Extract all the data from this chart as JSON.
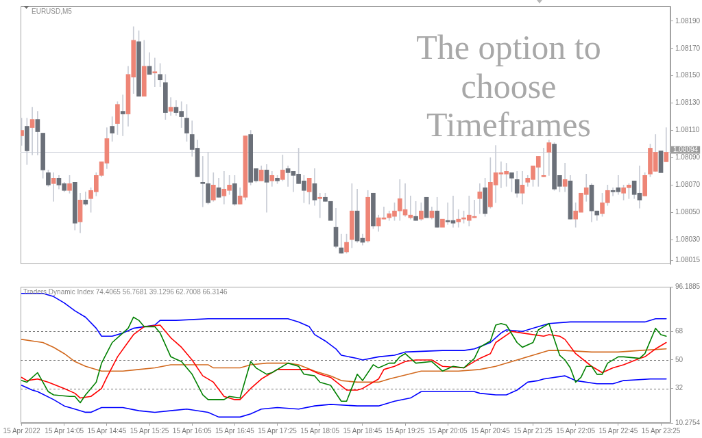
{
  "chart_data": [
    {
      "type": "candlestick",
      "title": "EURUSD,M5",
      "x": [
        "2022-04-15T13:25",
        "2022-04-15T13:30",
        "2022-04-15T13:35",
        "2022-04-15T13:40",
        "2022-04-15T13:45",
        "2022-04-15T13:50",
        "2022-04-15T13:55",
        "2022-04-15T14:00",
        "2022-04-15T14:05",
        "2022-04-15T14:10",
        "2022-04-15T14:15",
        "2022-04-15T14:20",
        "2022-04-15T14:25",
        "2022-04-15T14:30",
        "2022-04-15T14:35",
        "2022-04-15T14:40",
        "2022-04-15T14:45",
        "2022-04-15T14:50",
        "2022-04-15T14:55",
        "2022-04-15T15:00",
        "2022-04-15T15:05",
        "2022-04-15T15:10",
        "2022-04-15T15:15",
        "2022-04-15T15:20",
        "2022-04-15T15:25",
        "2022-04-15T15:30",
        "2022-04-15T15:35",
        "2022-04-15T15:40",
        "2022-04-15T15:45",
        "2022-04-15T15:50",
        "2022-04-15T15:55",
        "2022-04-15T16:00",
        "2022-04-15T16:05",
        "2022-04-15T16:10",
        "2022-04-15T16:15",
        "2022-04-15T16:20",
        "2022-04-15T16:25",
        "2022-04-15T16:30",
        "2022-04-15T16:35",
        "2022-04-15T16:40",
        "2022-04-15T16:45",
        "2022-04-15T16:50",
        "2022-04-15T16:55",
        "2022-04-15T17:00",
        "2022-04-15T17:05",
        "2022-04-15T17:10",
        "2022-04-15T17:15",
        "2022-04-15T17:20",
        "2022-04-15T17:25",
        "2022-04-15T17:30",
        "2022-04-15T17:35",
        "2022-04-15T17:40",
        "2022-04-15T17:45",
        "2022-04-15T17:50",
        "2022-04-15T17:55",
        "2022-04-15T18:00",
        "2022-04-15T18:05",
        "2022-04-15T18:10",
        "2022-04-15T18:15",
        "2022-04-15T18:20",
        "2022-04-15T18:25",
        "2022-04-15T18:30",
        "2022-04-15T18:35",
        "2022-04-15T18:40",
        "2022-04-15T18:45",
        "2022-04-15T18:50",
        "2022-04-15T18:55",
        "2022-04-15T19:00",
        "2022-04-15T19:05",
        "2022-04-15T19:10",
        "2022-04-15T19:15",
        "2022-04-15T19:20",
        "2022-04-15T19:25",
        "2022-04-15T19:30",
        "2022-04-15T19:35",
        "2022-04-15T19:40",
        "2022-04-15T19:45",
        "2022-04-15T19:50",
        "2022-04-15T19:55",
        "2022-04-15T20:00",
        "2022-04-15T20:05",
        "2022-04-15T20:10",
        "2022-04-15T20:15",
        "2022-04-15T20:20",
        "2022-04-15T20:25",
        "2022-04-15T20:30",
        "2022-04-15T20:35",
        "2022-04-15T20:40",
        "2022-04-15T20:45",
        "2022-04-15T20:50",
        "2022-04-15T20:55",
        "2022-04-15T21:00",
        "2022-04-15T21:05",
        "2022-04-15T21:10",
        "2022-04-15T21:15",
        "2022-04-15T21:20",
        "2022-04-15T21:25",
        "2022-04-15T21:30",
        "2022-04-15T21:35",
        "2022-04-15T21:40",
        "2022-04-15T21:45",
        "2022-04-15T21:50",
        "2022-04-15T21:55",
        "2022-04-15T22:00",
        "2022-04-15T22:05",
        "2022-04-15T22:10",
        "2022-04-15T22:15",
        "2022-04-15T22:20",
        "2022-04-15T22:25",
        "2022-04-15T22:30",
        "2022-04-15T22:35",
        "2022-04-15T22:40",
        "2022-04-15T22:45",
        "2022-04-15T22:50",
        "2022-04-15T22:55",
        "2022-04-15T23:00",
        "2022-04-15T23:05",
        "2022-04-15T23:10",
        "2022-04-15T23:15",
        "2022-04-15T23:20",
        "2022-04-15T23:25",
        "2022-04-15T23:30"
      ],
      "ohlc": [
        [
          1.08106,
          1.08119,
          1.08099,
          1.0811
        ],
        [
          1.08113,
          1.08119,
          1.08085,
          1.08095
        ],
        [
          1.08112,
          1.08127,
          1.08092,
          1.08118
        ],
        [
          1.08118,
          1.08124,
          1.08092,
          1.08109
        ],
        [
          1.08108,
          1.08108,
          1.08075,
          1.08081
        ],
        [
          1.08079,
          1.08081,
          1.08069,
          1.0807
        ],
        [
          1.08071,
          1.08079,
          1.08058,
          1.08075
        ],
        [
          1.08075,
          1.08077,
          1.08067,
          1.0807
        ],
        [
          1.08071,
          1.08072,
          1.08065,
          1.08066
        ],
        [
          1.08066,
          1.08077,
          1.08064,
          1.08071
        ],
        [
          1.08072,
          1.08072,
          1.08037,
          1.08042
        ],
        [
          1.08043,
          1.08064,
          1.08035,
          1.08059
        ],
        [
          1.08059,
          1.08065,
          1.08055,
          1.08056
        ],
        [
          1.0806,
          1.08068,
          1.0805,
          1.08066
        ],
        [
          1.08065,
          1.08079,
          1.08062,
          1.08077
        ],
        [
          1.08077,
          1.08087,
          1.08076,
          1.08087
        ],
        [
          1.08086,
          1.08112,
          1.08082,
          1.08104
        ],
        [
          1.08113,
          1.0812,
          1.08102,
          1.08108
        ],
        [
          1.08115,
          1.08131,
          1.08107,
          1.08129
        ],
        [
          1.08124,
          1.08136,
          1.08106,
          1.08122
        ],
        [
          1.08122,
          1.08157,
          1.08113,
          1.08151
        ],
        [
          1.08149,
          1.08186,
          1.08137,
          1.08176
        ],
        [
          1.08175,
          1.08183,
          1.08135,
          1.08135
        ],
        [
          1.08135,
          1.08176,
          1.08135,
          1.08157
        ],
        [
          1.08157,
          1.08167,
          1.08151,
          1.08151
        ],
        [
          1.08152,
          1.08163,
          1.08142,
          1.08153
        ],
        [
          1.08151,
          1.08159,
          1.08142,
          1.08147
        ],
        [
          1.08145,
          1.08151,
          1.08118,
          1.08123
        ],
        [
          1.08124,
          1.08134,
          1.08121,
          1.08127
        ],
        [
          1.08127,
          1.08132,
          1.08121,
          1.08123
        ],
        [
          1.08124,
          1.08131,
          1.08112,
          1.0812
        ],
        [
          1.08119,
          1.08129,
          1.08102,
          1.08108
        ],
        [
          1.08107,
          1.08117,
          1.08091,
          1.08096
        ],
        [
          1.08097,
          1.08103,
          1.08076,
          1.08076
        ],
        [
          1.08072,
          1.08091,
          1.08054,
          1.08071
        ],
        [
          1.08071,
          1.08094,
          1.08056,
          1.08057
        ],
        [
          1.08059,
          1.08079,
          1.08058,
          1.0807
        ],
        [
          1.08068,
          1.08075,
          1.08061,
          1.08061
        ],
        [
          1.08062,
          1.0808,
          1.08056,
          1.08067
        ],
        [
          1.08066,
          1.08077,
          1.08063,
          1.0807
        ],
        [
          1.08071,
          1.08077,
          1.08055,
          1.08056
        ],
        [
          1.08056,
          1.08068,
          1.08056,
          1.08062
        ],
        [
          1.08061,
          1.08106,
          1.08059,
          1.08106
        ],
        [
          1.08107,
          1.0811,
          1.0807,
          1.08072
        ],
        [
          1.08082,
          1.08082,
          1.08072,
          1.08073
        ],
        [
          1.08073,
          1.08084,
          1.08073,
          1.08081
        ],
        [
          1.08081,
          1.08085,
          1.0805,
          1.08072
        ],
        [
          1.08073,
          1.0808,
          1.08069,
          1.08077
        ],
        [
          1.08075,
          1.08077,
          1.08071,
          1.08073
        ],
        [
          1.08074,
          1.08092,
          1.08073,
          1.08081
        ],
        [
          1.08082,
          1.08084,
          1.08069,
          1.08079
        ],
        [
          1.0808,
          1.0808,
          1.08065,
          1.08077
        ],
        [
          1.08078,
          1.08097,
          1.08071,
          1.08071
        ],
        [
          1.08073,
          1.08077,
          1.08057,
          1.08066
        ],
        [
          1.08065,
          1.08075,
          1.08056,
          1.08075
        ],
        [
          1.08071,
          1.08082,
          1.08055,
          1.08059
        ],
        [
          1.0806,
          1.08064,
          1.08046,
          1.08061
        ],
        [
          1.08061,
          1.08064,
          1.08058,
          1.08058
        ],
        [
          1.08058,
          1.08058,
          1.08044,
          1.08044
        ],
        [
          1.08039,
          1.08053,
          1.08024,
          1.08025
        ],
        [
          1.08024,
          1.08034,
          1.0802,
          1.0802
        ],
        [
          1.08021,
          1.08034,
          1.0802,
          1.08028
        ],
        [
          1.0803,
          1.08071,
          1.08024,
          1.08051
        ],
        [
          1.08051,
          1.08067,
          1.08028,
          1.08029
        ],
        [
          1.08031,
          1.08034,
          1.08026,
          1.08028
        ],
        [
          1.08029,
          1.08066,
          1.08028,
          1.08061
        ],
        [
          1.08064,
          1.08064,
          1.08038,
          1.0804
        ],
        [
          1.0804,
          1.08048,
          1.08036,
          1.08046
        ],
        [
          1.08045,
          1.08054,
          1.08045,
          1.08046
        ],
        [
          1.08046,
          1.08051,
          1.08044,
          1.08049
        ],
        [
          1.08047,
          1.08057,
          1.08044,
          1.08051
        ],
        [
          1.08051,
          1.08074,
          1.08044,
          1.0806
        ],
        [
          1.08048,
          1.08071,
          1.08047,
          1.08052
        ],
        [
          1.08046,
          1.08062,
          1.08045,
          1.08048
        ],
        [
          1.08047,
          1.08058,
          1.08044,
          1.08044
        ],
        [
          1.08045,
          1.08057,
          1.08044,
          1.08051
        ],
        [
          1.08061,
          1.08061,
          1.08046,
          1.08046
        ],
        [
          1.08046,
          1.08054,
          1.08045,
          1.08051
        ],
        [
          1.08051,
          1.08061,
          1.08039,
          1.08039
        ],
        [
          1.08039,
          1.08045,
          1.08039,
          1.08045
        ],
        [
          1.08044,
          1.08057,
          1.08041,
          1.08043
        ],
        [
          1.08044,
          1.08062,
          1.08039,
          1.08042
        ],
        [
          1.08043,
          1.08052,
          1.08039,
          1.08045
        ],
        [
          1.08045,
          1.08051,
          1.08042,
          1.08046
        ],
        [
          1.08044,
          1.08062,
          1.0804,
          1.08048
        ],
        [
          1.08046,
          1.08059,
          1.08046,
          1.08047
        ],
        [
          1.0806,
          1.08071,
          1.08049,
          1.08065
        ],
        [
          1.08068,
          1.08075,
          1.08047,
          1.08049
        ],
        [
          1.08054,
          1.0809,
          1.08053,
          1.08072
        ],
        [
          1.0807,
          1.08099,
          1.08057,
          1.08079
        ],
        [
          1.08078,
          1.08087,
          1.08068,
          1.08079
        ],
        [
          1.08078,
          1.08086,
          1.08069,
          1.0808
        ],
        [
          1.08079,
          1.08079,
          1.08065,
          1.08075
        ],
        [
          1.08074,
          1.0808,
          1.08061,
          1.08064
        ],
        [
          1.08064,
          1.0808,
          1.08056,
          1.0807
        ],
        [
          1.08072,
          1.08077,
          1.08069,
          1.08075
        ],
        [
          1.08074,
          1.08084,
          1.08069,
          1.08084
        ],
        [
          1.08083,
          1.08091,
          1.08069,
          1.08091
        ],
        [
          1.08076,
          1.08097,
          1.08076,
          1.08077
        ],
        [
          1.08094,
          1.08103,
          1.08077,
          1.08101
        ],
        [
          1.081,
          1.08101,
          1.08066,
          1.08067
        ],
        [
          1.08077,
          1.08077,
          1.08065,
          1.08069
        ],
        [
          1.08069,
          1.08086,
          1.08065,
          1.08074
        ],
        [
          1.08073,
          1.08077,
          1.08045,
          1.08045
        ],
        [
          1.08045,
          1.08057,
          1.08039,
          1.08051
        ],
        [
          1.0805,
          1.08064,
          1.0805,
          1.08064
        ],
        [
          1.08063,
          1.08078,
          1.08058,
          1.08068
        ],
        [
          1.0807,
          1.08071,
          1.08043,
          1.08051
        ],
        [
          1.08051,
          1.08051,
          1.08044,
          1.08048
        ],
        [
          1.08049,
          1.08064,
          1.08047,
          1.08057
        ],
        [
          1.08057,
          1.0807,
          1.08055,
          1.08066
        ],
        [
          1.08066,
          1.08068,
          1.08062,
          1.08065
        ],
        [
          1.08068,
          1.08077,
          1.08063,
          1.08065
        ],
        [
          1.08064,
          1.0807,
          1.08059,
          1.08068
        ],
        [
          1.08068,
          1.08071,
          1.0806,
          1.0807
        ],
        [
          1.08073,
          1.08073,
          1.0806,
          1.08063
        ],
        [
          1.08064,
          1.08084,
          1.08053,
          1.08059
        ],
        [
          1.08062,
          1.08079,
          1.08062,
          1.08077
        ],
        [
          1.08078,
          1.081,
          1.08076,
          1.08097
        ],
        [
          1.0808,
          1.08107,
          1.0808,
          1.08094
        ],
        [
          1.08095,
          1.08095,
          1.08079,
          1.08079
        ],
        [
          1.08087,
          1.08112,
          1.08087,
          1.08094
        ]
      ],
      "colors": [
        "#ee8576",
        "#6b7079",
        "#ee8576",
        "#6b7079",
        "#6b7079",
        "#6b7079",
        "#ee8576",
        "#6b7079",
        "#6b7079",
        "#ee8576",
        "#6b7079",
        "#ee8576",
        "#6b7079",
        "#ee8576",
        "#ee8576",
        "#ee8576",
        "#ee8576",
        "#6b7079",
        "#ee8576",
        "#6b7079",
        "#ee8576",
        "#ee8576",
        "#6b7079",
        "#ee8576",
        "#6b7079",
        "#ee8576",
        "#6b7079",
        "#6b7079",
        "#ee8576",
        "#6b7079",
        "#6b7079",
        "#6b7079",
        "#6b7079",
        "#6b7079",
        "#6b7079",
        "#6b7079",
        "#ee8576",
        "#6b7079",
        "#ee8576",
        "#ee8576",
        "#6b7079",
        "#ee8576",
        "#ee8576",
        "#6b7079",
        "#6b7079",
        "#ee8576",
        "#6b7079",
        "#ee8576",
        "#6b7079",
        "#ee8576",
        "#6b7079",
        "#6b7079",
        "#6b7079",
        "#6b7079",
        "#ee8576",
        "#6b7079",
        "#ee8576",
        "#6b7079",
        "#6b7079",
        "#6b7079",
        "#6b7079",
        "#ee8576",
        "#ee8576",
        "#6b7079",
        "#6b7079",
        "#ee8576",
        "#6b7079",
        "#ee8576",
        "#ee8576",
        "#ee8576",
        "#ee8576",
        "#ee8576",
        "#ee8576",
        "#ee8576",
        "#6b7079",
        "#ee8576",
        "#6b7079",
        "#ee8576",
        "#6b7079",
        "#ee8576",
        "#6b7079",
        "#6b7079",
        "#ee8576",
        "#ee8576",
        "#ee8576",
        "#ee8576",
        "#ee8576",
        "#6b7079",
        "#ee8576",
        "#ee8576",
        "#ee8576",
        "#ee8576",
        "#6b7079",
        "#6b7079",
        "#ee8576",
        "#ee8576",
        "#ee8576",
        "#ee8576",
        "#ee8576",
        "#ee8576",
        "#6b7079",
        "#6b7079",
        "#ee8576",
        "#6b7079",
        "#ee8576",
        "#ee8576",
        "#ee8576",
        "#6b7079",
        "#6b7079",
        "#ee8576",
        "#ee8576",
        "#6b7079",
        "#6b7079",
        "#ee8576",
        "#ee8576",
        "#6b7079",
        "#6b7079",
        "#ee8576",
        "#ee8576",
        "#ee8576",
        "#6b7079",
        "#ee8576"
      ],
      "xlim": [
        "2022-04-15T13:24",
        "2022-04-15T23:34"
      ],
      "ylim": [
        1.08012,
        1.08201
      ],
      "yticks": [
        1.08015,
        {
          "value": 1.0803,
          "label": "1.08030"
        },
        {
          "value": 1.0805,
          "label": "1.08050"
        },
        {
          "value": 1.0807,
          "label": "1.08070"
        },
        {
          "value": 1.0809,
          "label": "1.08090"
        },
        {
          "value": 1.0811,
          "label": "1.08110"
        },
        {
          "value": 1.0813,
          "label": "1.08130"
        },
        {
          "value": 1.0815,
          "label": "1.08150"
        },
        {
          "value": 1.0817,
          "label": "1.08170"
        },
        {
          "value": 1.0819,
          "label": "1.08190"
        }
      ],
      "tick_labels": "y",
      "ref_lines": [
        {
          "axis": "y",
          "value": 1.08094,
          "label": "1.08094",
          "color": "#cfd2db"
        }
      ],
      "annotations": [
        "The option to choose Timeframes"
      ]
    },
    {
      "type": "line",
      "title": "Traders Dynamic Index 74.4065 56.7681 39.1296 62.7008 66.3146",
      "xlim": [
        "2022-04-15T13:24",
        "2022-04-15T23:34"
      ],
      "xticks": [
        {
          "value": "2022-04-15T13:25",
          "label": "15 Apr 2022"
        },
        {
          "value": "2022-04-15T14:05",
          "label": "15 Apr 14:05"
        },
        {
          "value": "2022-04-15T14:45",
          "label": "15 Apr 14:45"
        },
        {
          "value": "2022-04-15T15:25",
          "label": "15 Apr 15:25"
        },
        {
          "value": "2022-04-15T16:05",
          "label": "15 Apr 16:05"
        },
        {
          "value": "2022-04-15T16:45",
          "label": "15 Apr 16:45"
        },
        {
          "value": "2022-04-15T17:25",
          "label": "15 Apr 17:25"
        },
        {
          "value": "2022-04-15T18:05",
          "label": "15 Apr 18:05"
        },
        {
          "value": "2022-04-15T18:45",
          "label": "15 Apr 18:45"
        },
        {
          "value": "2022-04-15T19:25",
          "label": "15 Apr 19:25"
        },
        {
          "value": "2022-04-15T20:05",
          "label": "15 Apr 20:05"
        },
        {
          "value": "2022-04-15T20:45",
          "label": "15 Apr 20:45"
        },
        {
          "value": "2022-04-15T21:25",
          "label": "15 Apr 21:25"
        },
        {
          "value": "2022-04-15T22:05",
          "label": "15 Apr 22:05"
        },
        {
          "value": "2022-04-15T22:45",
          "label": "15 Apr 22:45"
        },
        {
          "value": "2022-04-15T23:25",
          "label": "15 Apr 23:25"
        }
      ],
      "ylim": [
        10.2754,
        96.1885
      ],
      "yticks": [
        10.2754,
        32,
        50,
        68,
        96.1885
      ],
      "ref_lines": [
        {
          "axis": "y",
          "value": 68,
          "line_style": "dashed",
          "color": "#6e6e6e"
        },
        {
          "axis": "y",
          "value": 50,
          "line_style": "dashed",
          "color": "#6e6e6e"
        },
        {
          "axis": "y",
          "value": 32,
          "line_style": "dashed",
          "color": "#6e6e6e"
        }
      ],
      "series": [
        {
          "color": "#0000ff",
          "x": [
            "2022-04-15T13:25",
            "2022-04-15T13:45",
            "2022-04-15T13:55",
            "2022-04-15T14:05",
            "2022-04-15T14:15",
            "2022-04-15T14:25",
            "2022-04-15T14:35",
            "2022-04-15T14:40",
            "2022-04-15T14:50",
            "2022-04-15T15:00",
            "2022-04-15T15:10",
            "2022-04-15T15:20",
            "2022-04-15T15:30",
            "2022-04-15T15:35",
            "2022-04-15T15:50",
            "2022-04-15T16:20",
            "2022-04-15T16:50",
            "2022-04-15T17:20",
            "2022-04-15T17:35",
            "2022-04-15T17:45",
            "2022-04-15T17:55",
            "2022-04-15T18:00",
            "2022-04-15T18:10",
            "2022-04-15T18:20",
            "2022-04-15T18:25",
            "2022-04-15T18:40",
            "2022-04-15T18:45",
            "2022-04-15T19:00",
            "2022-04-15T19:15",
            "2022-04-15T19:25",
            "2022-04-15T20:00",
            "2022-04-15T20:20",
            "2022-04-15T20:30",
            "2022-04-15T20:45",
            "2022-04-15T20:55",
            "2022-04-15T21:00",
            "2022-04-15T21:15",
            "2022-04-15T21:30",
            "2022-04-15T21:40",
            "2022-04-15T22:00",
            "2022-04-15T22:25",
            "2022-04-15T23:10",
            "2022-04-15T23:20",
            "2022-04-15T23:30"
          ],
          "values": [
            92,
            92,
            90,
            86,
            81,
            77,
            70,
            65,
            65,
            67,
            70,
            71,
            72,
            75,
            75,
            76,
            76,
            76,
            76,
            74,
            71,
            66,
            62,
            57,
            53,
            51,
            50,
            52,
            53,
            55,
            56,
            56,
            57,
            61,
            67,
            69,
            68,
            71,
            73,
            74,
            74,
            74,
            76,
            76
          ]
        },
        {
          "color": "#d2691e",
          "x": [
            "2022-04-15T13:25",
            "2022-04-15T13:35",
            "2022-04-15T13:45",
            "2022-04-15T13:55",
            "2022-04-15T14:05",
            "2022-04-15T14:15",
            "2022-04-15T14:25",
            "2022-04-15T14:40",
            "2022-04-15T15:00",
            "2022-04-15T15:15",
            "2022-04-15T15:30",
            "2022-04-15T15:45",
            "2022-04-15T16:00",
            "2022-04-15T16:20",
            "2022-04-15T16:25",
            "2022-04-15T16:50",
            "2022-04-15T17:00",
            "2022-04-15T17:15",
            "2022-04-15T17:35",
            "2022-04-15T17:45",
            "2022-04-15T18:00",
            "2022-04-15T18:15",
            "2022-04-15T18:25",
            "2022-04-15T18:40",
            "2022-04-15T19:00",
            "2022-04-15T19:10",
            "2022-04-15T19:40",
            "2022-04-15T20:15",
            "2022-04-15T20:35",
            "2022-04-15T20:50",
            "2022-04-15T21:10",
            "2022-04-15T21:25",
            "2022-04-15T21:40",
            "2022-04-15T21:55",
            "2022-04-15T22:20",
            "2022-04-15T22:45",
            "2022-04-15T23:05",
            "2022-04-15T23:30"
          ],
          "values": [
            63,
            62,
            61,
            58,
            54,
            49,
            46,
            43,
            43,
            44,
            45,
            47,
            47,
            47,
            45,
            45,
            47,
            48,
            48,
            47,
            43,
            40,
            37,
            36,
            36,
            38,
            43,
            43,
            44,
            46,
            50,
            53,
            56,
            56,
            55,
            55,
            56,
            57
          ]
        },
        {
          "color": "#0000ff",
          "x": [
            "2022-04-15T13:25",
            "2022-04-15T13:35",
            "2022-04-15T13:40",
            "2022-04-15T13:55",
            "2022-04-15T14:05",
            "2022-04-15T14:15",
            "2022-04-15T14:25",
            "2022-04-15T14:30",
            "2022-04-15T14:40",
            "2022-04-15T15:00",
            "2022-04-15T15:15",
            "2022-04-15T15:30",
            "2022-04-15T16:00",
            "2022-04-15T16:20",
            "2022-04-15T16:30",
            "2022-04-15T16:50",
            "2022-04-15T17:00",
            "2022-04-15T17:10",
            "2022-04-15T17:25",
            "2022-04-15T17:45",
            "2022-04-15T18:00",
            "2022-04-15T18:15",
            "2022-04-15T18:40",
            "2022-04-15T19:00",
            "2022-04-15T19:15",
            "2022-04-15T19:30",
            "2022-04-15T19:40",
            "2022-04-15T20:30",
            "2022-04-15T20:35",
            "2022-04-15T20:50",
            "2022-04-15T21:00",
            "2022-04-15T21:10",
            "2022-04-15T21:20",
            "2022-04-15T21:30",
            "2022-04-15T21:35",
            "2022-04-15T21:55",
            "2022-04-15T22:05",
            "2022-04-15T22:25",
            "2022-04-15T22:40",
            "2022-04-15T22:50",
            "2022-04-15T23:15",
            "2022-04-15T23:30"
          ],
          "values": [
            34,
            31,
            30,
            25,
            21,
            19,
            17,
            17,
            20,
            20,
            18,
            17,
            19,
            17,
            14,
            14,
            16,
            19,
            20,
            19,
            21,
            22,
            21,
            21,
            24,
            26,
            30,
            30,
            29,
            28,
            28,
            31,
            36,
            37,
            38,
            40,
            37,
            35,
            35,
            37,
            38,
            38
          ]
        },
        {
          "color": "#ff0000",
          "x": [
            "2022-04-15T13:25",
            "2022-04-15T13:30",
            "2022-04-15T13:40",
            "2022-04-15T13:50",
            "2022-04-15T14:05",
            "2022-04-15T14:15",
            "2022-04-15T14:20",
            "2022-04-15T14:30",
            "2022-04-15T14:40",
            "2022-04-15T14:45",
            "2022-04-15T14:55",
            "2022-04-15T15:10",
            "2022-04-15T15:20",
            "2022-04-15T15:35",
            "2022-04-15T15:45",
            "2022-04-15T15:55",
            "2022-04-15T16:05",
            "2022-04-15T16:15",
            "2022-04-15T16:25",
            "2022-04-15T16:35",
            "2022-04-15T16:45",
            "2022-04-15T16:50",
            "2022-04-15T17:00",
            "2022-04-15T17:10",
            "2022-04-15T17:25",
            "2022-04-15T17:45",
            "2022-04-15T17:55",
            "2022-04-15T18:05",
            "2022-04-15T18:15",
            "2022-04-15T18:30",
            "2022-04-15T18:40",
            "2022-04-15T18:45",
            "2022-04-15T19:00",
            "2022-04-15T19:05",
            "2022-04-15T19:15",
            "2022-04-15T19:25",
            "2022-04-15T19:35",
            "2022-04-15T19:50",
            "2022-04-15T20:00",
            "2022-04-15T20:20",
            "2022-04-15T20:25",
            "2022-04-15T20:35",
            "2022-04-15T20:45",
            "2022-04-15T20:50",
            "2022-04-15T21:05",
            "2022-04-15T21:15",
            "2022-04-15T21:35",
            "2022-04-15T21:40",
            "2022-04-15T21:50",
            "2022-04-15T21:55",
            "2022-04-15T22:05",
            "2022-04-15T22:20",
            "2022-04-15T22:30",
            "2022-04-15T22:40",
            "2022-04-15T22:50",
            "2022-04-15T23:05",
            "2022-04-15T23:10",
            "2022-04-15T23:20",
            "2022-04-15T23:30"
          ],
          "values": [
            39,
            37,
            38,
            36,
            32,
            29,
            26,
            27,
            32,
            39,
            52,
            66,
            71,
            72,
            64,
            58,
            50,
            40,
            36,
            27,
            25,
            25,
            32,
            38,
            44,
            44,
            44,
            41,
            39,
            31,
            31,
            32,
            38,
            44,
            46,
            49,
            50,
            50,
            46,
            45,
            47,
            51,
            54,
            61,
            68,
            67,
            65,
            66,
            65,
            63,
            54,
            46,
            42,
            45,
            47,
            51,
            52,
            57,
            61
          ]
        },
        {
          "color": "#008000",
          "x": [
            "2022-04-15T13:25",
            "2022-04-15T13:30",
            "2022-04-15T13:40",
            "2022-04-15T13:50",
            "2022-04-15T13:55",
            "2022-04-15T14:10",
            "2022-04-15T14:15",
            "2022-04-15T14:20",
            "2022-04-15T14:25",
            "2022-04-15T14:35",
            "2022-04-15T14:40",
            "2022-04-15T14:50",
            "2022-04-15T15:00",
            "2022-04-15T15:05",
            "2022-04-15T15:10",
            "2022-04-15T15:15",
            "2022-04-15T15:20",
            "2022-04-15T15:30",
            "2022-04-15T15:35",
            "2022-04-15T15:45",
            "2022-04-15T15:55",
            "2022-04-15T16:05",
            "2022-04-15T16:15",
            "2022-04-15T16:20",
            "2022-04-15T16:35",
            "2022-04-15T16:40",
            "2022-04-15T16:50",
            "2022-04-15T17:00",
            "2022-04-15T17:05",
            "2022-04-15T17:15",
            "2022-04-15T17:20",
            "2022-04-15T17:35",
            "2022-04-15T17:45",
            "2022-04-15T17:50",
            "2022-04-15T18:00",
            "2022-04-15T18:05",
            "2022-04-15T18:15",
            "2022-04-15T18:25",
            "2022-04-15T18:30",
            "2022-04-15T18:40",
            "2022-04-15T18:45",
            "2022-04-15T18:55",
            "2022-04-15T19:00",
            "2022-04-15T19:10",
            "2022-04-15T19:15",
            "2022-04-15T19:20",
            "2022-04-15T19:25",
            "2022-04-15T19:35",
            "2022-04-15T19:50",
            "2022-04-15T20:00",
            "2022-04-15T20:10",
            "2022-04-15T20:20",
            "2022-04-15T20:30",
            "2022-04-15T20:35",
            "2022-04-15T20:45",
            "2022-04-15T20:50",
            "2022-04-15T20:55",
            "2022-04-15T21:00",
            "2022-04-15T21:10",
            "2022-04-15T21:15",
            "2022-04-15T21:25",
            "2022-04-15T21:30",
            "2022-04-15T21:35",
            "2022-04-15T21:40",
            "2022-04-15T21:50",
            "2022-04-15T21:55",
            "2022-04-15T22:00",
            "2022-04-15T22:05",
            "2022-04-15T22:10",
            "2022-04-15T22:15",
            "2022-04-15T22:20",
            "2022-04-15T22:25",
            "2022-04-15T22:30",
            "2022-04-15T22:35",
            "2022-04-15T22:45",
            "2022-04-15T22:50",
            "2022-04-15T23:05",
            "2022-04-15T23:10",
            "2022-04-15T23:20",
            "2022-04-15T23:25",
            "2022-04-15T23:30"
          ],
          "values": [
            37,
            36,
            42,
            30,
            28,
            27,
            27,
            23,
            28,
            36,
            48,
            61,
            67,
            70,
            77,
            75,
            71,
            71,
            67,
            52,
            49,
            41,
            28,
            25,
            25,
            27,
            26,
            49,
            45,
            41,
            42,
            48,
            46,
            41,
            40,
            36,
            34,
            24,
            24,
            41,
            37,
            47,
            45,
            48,
            48,
            52,
            54,
            48,
            49,
            43,
            46,
            45,
            51,
            58,
            62,
            72,
            73,
            72,
            61,
            58,
            61,
            69,
            71,
            73,
            53,
            50,
            45,
            36,
            39,
            46,
            46,
            41,
            41,
            48,
            52,
            52,
            51,
            54,
            70,
            66,
            65
          ]
        }
      ]
    }
  ]
}
